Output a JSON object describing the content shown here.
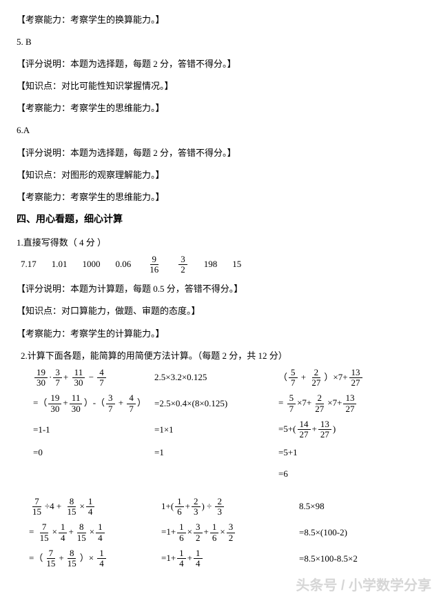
{
  "lines": {
    "l1": "【考察能力：考察学生的换算能力。】",
    "q5": "5. B",
    "l2": "【评分说明：本题为选择题，每题 2 分，答错不得分。】",
    "l3": "【知识点：对比可能性知识掌握情况。】",
    "l4": "【考察能力：考察学生的思维能力。】",
    "q6": "6.A",
    "l5": "【评分说明：本题为选择题，每题 2 分，答错不得分。】",
    "l6": "【知识点：对图形的观察理解能力。】",
    "l7": "【考察能力：考察学生的思维能力。】",
    "section4": "四、用心看题，细心计算",
    "p1_title": "1.直接写得数（  4 分 ）",
    "p1_scoring": "【评分说明：本题为计算题，每题 0.5 分，答错不得分。】",
    "p1_kp": "【知识点：对口算能力，做题、审题的态度。】",
    "p1_ability": "【考察能力：考察学生的计算能力。】",
    "p2_title": "2.计算下面各题，能简算的用简便方法计算。（每题 2 分，共 12 分）"
  },
  "answers1": [
    "7.17",
    "1.01",
    "1000",
    "0.06"
  ],
  "answers1_fracs": [
    {
      "num": "9",
      "den": "16"
    },
    {
      "num": "3",
      "den": "2"
    }
  ],
  "answers1_tail": [
    "198",
    "15"
  ],
  "calc": {
    "r1c1": {
      "parts": [
        {
          "f": [
            "19",
            "30"
          ]
        },
        "·",
        {
          "f": [
            "3",
            "7"
          ]
        },
        "+ ",
        {
          "f": [
            "11",
            "30"
          ]
        },
        " − ",
        {
          "f": [
            "4",
            "7"
          ]
        }
      ]
    },
    "r1c2": "2.5×3.2×0.125",
    "r1c3": {
      "parts": [
        "（",
        {
          "f": [
            "5",
            "7"
          ]
        },
        " + ",
        {
          "f": [
            "2",
            "27"
          ]
        },
        "）×7+",
        {
          "f": [
            "13",
            "27"
          ]
        }
      ]
    },
    "r2c1": {
      "parts": [
        "=（",
        {
          "f": [
            "19",
            "30"
          ]
        },
        "+",
        {
          "f": [
            "11",
            "30"
          ]
        },
        "）-（",
        {
          "f": [
            "3",
            "7"
          ]
        },
        " + ",
        {
          "f": [
            "4",
            "7"
          ]
        },
        "）"
      ]
    },
    "r2c2": "=2.5×0.4×(8×0.125)",
    "r2c3": {
      "parts": [
        "= ",
        {
          "f": [
            "5",
            "7"
          ]
        },
        "×7+",
        {
          "f": [
            "2",
            "27"
          ]
        },
        "×7+",
        {
          "f": [
            "13",
            "27"
          ]
        }
      ]
    },
    "r3c1": "=1-1",
    "r3c2": "=1×1",
    "r3c3": {
      "parts": [
        "=5+(",
        {
          "f": [
            "14",
            "27"
          ]
        },
        "+",
        {
          "f": [
            "13",
            "27"
          ]
        },
        ")"
      ]
    },
    "r4c1": "=0",
    "r4c2": "=1",
    "r4c3": "=5+1",
    "r5c3": "=6"
  },
  "calc2": {
    "r1c1": {
      "parts": [
        {
          "f": [
            "7",
            "15"
          ]
        },
        "÷4 + ",
        {
          "f": [
            "8",
            "15"
          ]
        },
        "×",
        {
          "f": [
            "1",
            "4"
          ]
        }
      ]
    },
    "r1c2": {
      "parts": [
        "1+(",
        {
          "f": [
            "1",
            "6"
          ]
        },
        "+",
        {
          "f": [
            "2",
            "3"
          ]
        },
        ") ÷ ",
        {
          "f": [
            "2",
            "3"
          ]
        }
      ]
    },
    "r1c3": "8.5×98",
    "r2c1": {
      "parts": [
        "= ",
        {
          "f": [
            "7",
            "15"
          ]
        },
        "×",
        {
          "f": [
            "1",
            "4"
          ]
        },
        "+",
        {
          "f": [
            "8",
            "15"
          ]
        },
        "×",
        {
          "f": [
            "1",
            "4"
          ]
        }
      ]
    },
    "r2c2": {
      "parts": [
        "=1+",
        {
          "f": [
            "1",
            "6"
          ]
        },
        "×",
        {
          "f": [
            "3",
            "2"
          ]
        },
        "+",
        {
          "f": [
            "1",
            "6"
          ]
        },
        "×",
        {
          "f": [
            "3",
            "2"
          ]
        }
      ]
    },
    "r2c3": "=8.5×(100-2)",
    "r3c1": {
      "parts": [
        "=（",
        {
          "f": [
            "7",
            "15"
          ]
        },
        "+",
        {
          "f": [
            "8",
            "15"
          ]
        },
        "）× ",
        {
          "f": [
            "1",
            "4"
          ]
        }
      ]
    },
    "r3c2": {
      "parts": [
        "=1+",
        {
          "f": [
            "1",
            "4"
          ]
        },
        "+",
        {
          "f": [
            "1",
            "4"
          ]
        }
      ]
    },
    "r3c3": "=8.5×100-8.5×2"
  },
  "watermark": "头条号 / 小学数学分享"
}
